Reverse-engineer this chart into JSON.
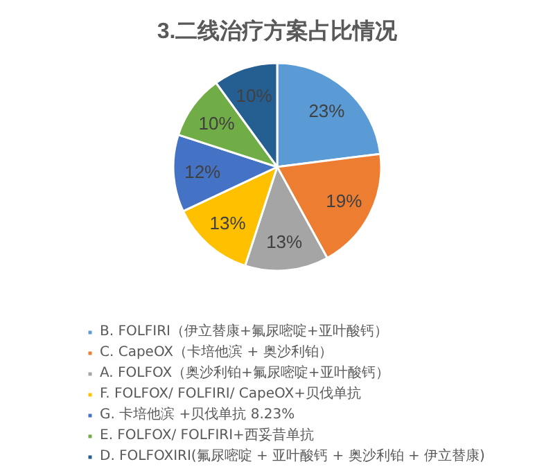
{
  "chart_data": {
    "type": "pie",
    "title": "3.二线治疗方案占比情况",
    "categories": [
      "B. FOLFIRI（伊立替康+氟尿嘧啶+亚叶酸钙）",
      "C. CapeOX（卡培他滨 + 奥沙利铂）",
      "A. FOLFOX（奥沙利铂+氟尿嘧啶+亚叶酸钙）",
      "F. FOLFOX/ FOLFIRI/ CapeOX+贝伐单抗",
      "G. 卡培他滨 +贝伐单抗 8.23%",
      "E. FOLFOX/ FOLFIRI+西妥昔单抗",
      "D. FOLFOXIRI(氟尿嘧啶 + 亚叶酸钙 + 奥沙利铂 + 伊立替康)"
    ],
    "values": [
      23,
      19,
      13,
      13,
      12,
      10,
      10
    ],
    "value_labels": [
      "23%",
      "19%",
      "13%",
      "13%",
      "12%",
      "10%",
      "10%"
    ],
    "colors": [
      "#5b9bd5",
      "#ed7d31",
      "#a5a5a5",
      "#ffc000",
      "#4472c4",
      "#70ad47",
      "#255e91"
    ],
    "legend": "bottom"
  }
}
